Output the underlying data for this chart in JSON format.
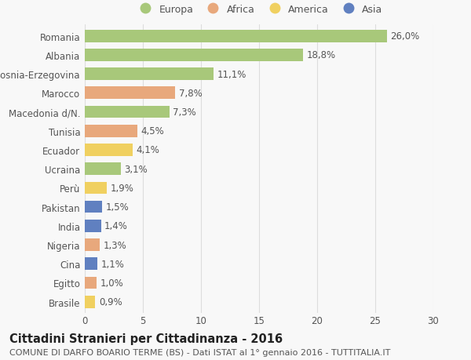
{
  "categories": [
    "Romania",
    "Albania",
    "Bosnia-Erzegovina",
    "Marocco",
    "Macedonia d/N.",
    "Tunisia",
    "Ecuador",
    "Ucraina",
    "Perù",
    "Pakistan",
    "India",
    "Nigeria",
    "Cina",
    "Egitto",
    "Brasile"
  ],
  "values": [
    26.0,
    18.8,
    11.1,
    7.8,
    7.3,
    4.5,
    4.1,
    3.1,
    1.9,
    1.5,
    1.4,
    1.3,
    1.1,
    1.0,
    0.9
  ],
  "labels": [
    "26,0%",
    "18,8%",
    "11,1%",
    "7,8%",
    "7,3%",
    "4,5%",
    "4,1%",
    "3,1%",
    "1,9%",
    "1,5%",
    "1,4%",
    "1,3%",
    "1,1%",
    "1,0%",
    "0,9%"
  ],
  "continents": [
    "Europa",
    "Europa",
    "Europa",
    "Africa",
    "Europa",
    "Africa",
    "America",
    "Europa",
    "America",
    "Asia",
    "Asia",
    "Africa",
    "Asia",
    "Africa",
    "America"
  ],
  "continent_colors": {
    "Europa": "#a8c87a",
    "Africa": "#e8a87c",
    "America": "#f0d060",
    "Asia": "#6080c0"
  },
  "legend_items": [
    "Europa",
    "Africa",
    "America",
    "Asia"
  ],
  "xlim": [
    0,
    30
  ],
  "xticks": [
    0,
    5,
    10,
    15,
    20,
    25,
    30
  ],
  "title": "Cittadini Stranieri per Cittadinanza - 2016",
  "subtitle": "COMUNE DI DARFO BOARIO TERME (BS) - Dati ISTAT al 1° gennaio 2016 - TUTTITALIA.IT",
  "background_color": "#f8f8f8",
  "bar_height": 0.65,
  "grid_color": "#dddddd",
  "text_color": "#555555",
  "label_fontsize": 8.5,
  "title_fontsize": 10.5,
  "subtitle_fontsize": 8
}
